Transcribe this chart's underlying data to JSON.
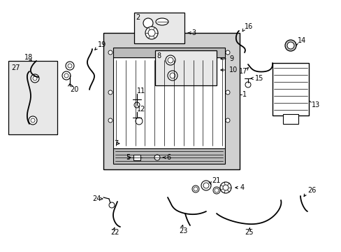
{
  "bg_color": "#ffffff",
  "fig_width": 4.89,
  "fig_height": 3.6,
  "dpi": 100,
  "lc": "#000000",
  "box_fill": "#e8e8e8",
  "rad_fill": "#d0d0d0"
}
